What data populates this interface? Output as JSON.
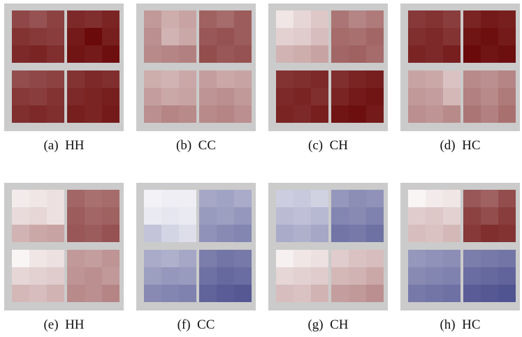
{
  "chart_data": {
    "type": "heatmap",
    "colors": {
      "panel_background": "#cbcbcb",
      "scale_white": "#ffffff",
      "scale_red": "#650000",
      "scale_blue": "#2a2e78"
    },
    "value_note": "intensity 0 = white, 1 = darkest; sign + = red, - = blue",
    "panels": [
      {
        "caption": "(a)  HH",
        "blocks": [
          [
            [
              0.72,
              0.68,
              0.74
            ],
            [
              0.8,
              0.78,
              0.76
            ],
            [
              0.84,
              0.86,
              0.82
            ]
          ],
          [
            [
              0.84,
              0.82,
              0.86
            ],
            [
              0.9,
              0.96,
              0.88
            ],
            [
              0.92,
              0.9,
              0.94
            ]
          ],
          [
            [
              0.7,
              0.72,
              0.74
            ],
            [
              0.78,
              0.76,
              0.8
            ],
            [
              0.82,
              0.84,
              0.82
            ]
          ],
          [
            [
              0.8,
              0.84,
              0.82
            ],
            [
              0.84,
              0.86,
              0.88
            ],
            [
              0.88,
              0.86,
              0.9
            ]
          ]
        ]
      },
      {
        "caption": "(b)  CC",
        "blocks": [
          [
            [
              0.4,
              0.32,
              0.36
            ],
            [
              0.44,
              0.3,
              0.34
            ],
            [
              0.46,
              0.48,
              0.5
            ]
          ],
          [
            [
              0.62,
              0.58,
              0.64
            ],
            [
              0.66,
              0.68,
              0.64
            ],
            [
              0.7,
              0.66,
              0.68
            ]
          ],
          [
            [
              0.32,
              0.3,
              0.34
            ],
            [
              0.38,
              0.34,
              0.36
            ],
            [
              0.44,
              0.48,
              0.46
            ]
          ],
          [
            [
              0.38,
              0.34,
              0.36
            ],
            [
              0.42,
              0.44,
              0.4
            ],
            [
              0.46,
              0.48,
              0.44
            ]
          ]
        ]
      },
      {
        "caption": "(c)  CH",
        "blocks": [
          [
            [
              0.1,
              0.16,
              0.22
            ],
            [
              0.18,
              0.2,
              0.26
            ],
            [
              0.3,
              0.32,
              0.36
            ]
          ],
          [
            [
              0.54,
              0.48,
              0.52
            ],
            [
              0.58,
              0.56,
              0.6
            ],
            [
              0.6,
              0.62,
              0.58
            ]
          ],
          [
            [
              0.8,
              0.82,
              0.84
            ],
            [
              0.84,
              0.86,
              0.82
            ],
            [
              0.86,
              0.84,
              0.88
            ]
          ],
          [
            [
              0.82,
              0.86,
              0.88
            ],
            [
              0.86,
              0.9,
              0.92
            ],
            [
              0.92,
              0.94,
              0.9
            ]
          ]
        ]
      },
      {
        "caption": "(d)  HC",
        "blocks": [
          [
            [
              0.78,
              0.8,
              0.76
            ],
            [
              0.82,
              0.84,
              0.8
            ],
            [
              0.86,
              0.84,
              0.88
            ]
          ],
          [
            [
              0.86,
              0.9,
              0.88
            ],
            [
              0.92,
              0.94,
              0.9
            ],
            [
              0.96,
              0.92,
              0.94
            ]
          ],
          [
            [
              0.36,
              0.34,
              0.24
            ],
            [
              0.4,
              0.38,
              0.28
            ],
            [
              0.44,
              0.42,
              0.46
            ]
          ],
          [
            [
              0.46,
              0.44,
              0.48
            ],
            [
              0.5,
              0.46,
              0.52
            ],
            [
              0.54,
              0.5,
              0.56
            ]
          ]
        ]
      },
      {
        "caption": "(e)  HH",
        "blocks": [
          [
            [
              0.08,
              0.1,
              0.12
            ],
            [
              0.14,
              0.16,
              0.12
            ],
            [
              0.3,
              0.34,
              0.36
            ]
          ],
          [
            [
              0.6,
              0.56,
              0.58
            ],
            [
              0.64,
              0.6,
              0.62
            ],
            [
              0.66,
              0.64,
              0.68
            ]
          ],
          [
            [
              0.04,
              0.1,
              0.12
            ],
            [
              0.16,
              0.18,
              0.2
            ],
            [
              0.28,
              0.26,
              0.3
            ]
          ],
          [
            [
              0.4,
              0.38,
              0.42
            ],
            [
              0.42,
              0.44,
              0.4
            ],
            [
              0.46,
              0.44,
              0.48
            ]
          ]
        ]
      },
      {
        "caption": "(f)  CC",
        "blocks": [
          [
            [
              -0.06,
              -0.08,
              -0.08
            ],
            [
              -0.1,
              -0.12,
              -0.1
            ],
            [
              -0.28,
              -0.2,
              -0.16
            ]
          ],
          [
            [
              -0.42,
              -0.44,
              -0.4
            ],
            [
              -0.48,
              -0.46,
              -0.5
            ],
            [
              -0.52,
              -0.56,
              -0.58
            ]
          ],
          [
            [
              -0.4,
              -0.38,
              -0.42
            ],
            [
              -0.46,
              -0.5,
              -0.48
            ],
            [
              -0.56,
              -0.58,
              -0.6
            ]
          ],
          [
            [
              -0.62,
              -0.66,
              -0.64
            ],
            [
              -0.68,
              -0.72,
              -0.7
            ],
            [
              -0.74,
              -0.78,
              -0.8
            ]
          ]
        ]
      },
      {
        "caption": "(g)  CH",
        "blocks": [
          [
            [
              -0.24,
              -0.26,
              -0.22
            ],
            [
              -0.32,
              -0.3,
              -0.34
            ],
            [
              -0.4,
              -0.38,
              -0.42
            ]
          ],
          [
            [
              -0.5,
              -0.54,
              -0.52
            ],
            [
              -0.58,
              -0.56,
              -0.6
            ],
            [
              -0.66,
              -0.64,
              -0.68
            ]
          ],
          [
            [
              0.06,
              0.1,
              0.12
            ],
            [
              0.16,
              0.18,
              0.2
            ],
            [
              0.26,
              0.24,
              0.3
            ]
          ],
          [
            [
              0.2,
              0.24,
              0.26
            ],
            [
              0.28,
              0.3,
              0.34
            ],
            [
              0.38,
              0.4,
              0.44
            ]
          ]
        ]
      },
      {
        "caption": "(h)  HC",
        "blocks": [
          [
            [
              0.04,
              0.08,
              0.1
            ],
            [
              0.2,
              0.22,
              0.18
            ],
            [
              0.26,
              0.24,
              0.28
            ]
          ],
          [
            [
              0.66,
              0.62,
              0.7
            ],
            [
              0.74,
              0.7,
              0.76
            ],
            [
              0.78,
              0.82,
              0.8
            ]
          ],
          [
            [
              -0.5,
              -0.52,
              -0.54
            ],
            [
              -0.56,
              -0.58,
              -0.6
            ],
            [
              -0.64,
              -0.66,
              -0.68
            ]
          ],
          [
            [
              -0.62,
              -0.64,
              -0.66
            ],
            [
              -0.7,
              -0.72,
              -0.74
            ],
            [
              -0.78,
              -0.8,
              -0.82
            ]
          ]
        ]
      }
    ]
  }
}
